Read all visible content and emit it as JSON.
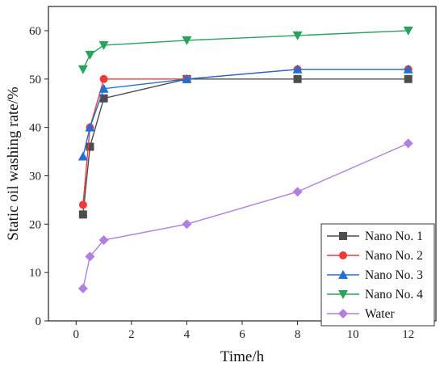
{
  "chart_data": {
    "type": "line",
    "xlabel": "Time/h",
    "ylabel": "Static oil washing rate/%",
    "xlim": [
      -1,
      13
    ],
    "ylim": [
      0,
      65
    ],
    "x_ticks": [
      0,
      2,
      4,
      6,
      8,
      10,
      12
    ],
    "y_ticks": [
      0,
      10,
      20,
      30,
      40,
      50,
      60
    ],
    "legend_position": "bottom-right",
    "grid": false,
    "series": [
      {
        "name": "Nano No. 1",
        "color": "#4d4d4d",
        "marker": "square",
        "x": [
          0.25,
          0.5,
          1,
          4,
          8,
          12
        ],
        "y": [
          22,
          36,
          46,
          50,
          50,
          50
        ]
      },
      {
        "name": "Nano No. 2",
        "color": "#f03a3a",
        "marker": "circle",
        "x": [
          0.25,
          0.5,
          1,
          4,
          8,
          12
        ],
        "y": [
          24,
          40,
          50,
          50,
          52,
          52
        ]
      },
      {
        "name": "Nano No. 3",
        "color": "#1f6fd6",
        "marker": "triangle-up",
        "x": [
          0.25,
          0.5,
          1,
          4,
          8,
          12
        ],
        "y": [
          34,
          40,
          48,
          50,
          52,
          52
        ]
      },
      {
        "name": "Nano No. 4",
        "color": "#27a35a",
        "marker": "triangle-down",
        "x": [
          0.25,
          0.5,
          1,
          4,
          8,
          12
        ],
        "y": [
          52,
          55,
          57,
          58,
          59,
          60
        ]
      },
      {
        "name": "Water",
        "color": "#b07fe0",
        "marker": "diamond",
        "x": [
          0.25,
          0.5,
          1,
          4,
          8,
          12
        ],
        "y": [
          6.7,
          13.3,
          16.7,
          20,
          26.7,
          36.7
        ]
      }
    ]
  }
}
